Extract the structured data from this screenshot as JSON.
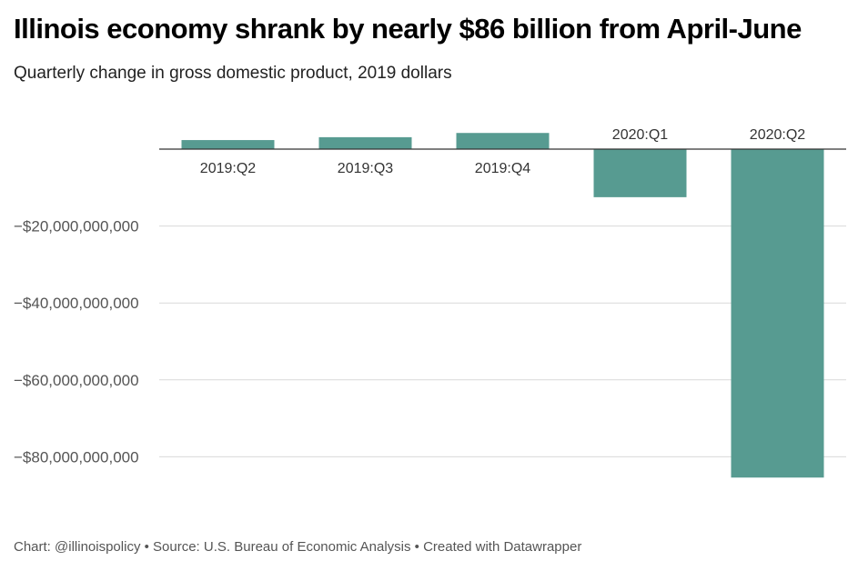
{
  "title": "Illinois economy shrank by nearly $86 billion from April-June",
  "subtitle": "Quarterly change in gross domestic product, 2019 dollars",
  "footer": "Chart: @illinoispolicy • Source: U.S. Bureau of Economic Analysis • Created with Datawrapper",
  "chart_data": {
    "type": "bar",
    "categories": [
      "2019:Q2",
      "2019:Q3",
      "2019:Q4",
      "2020:Q1",
      "2020:Q2"
    ],
    "values": [
      2350000000,
      3100000000,
      4200000000,
      -12500000000,
      -85400000000
    ],
    "ylim": [
      -90000000000,
      10000000000
    ],
    "yticks": [
      -20000000000,
      -40000000000,
      -60000000000,
      -80000000000
    ],
    "ytick_labels": [
      "−$20,000,000,000",
      "−$40,000,000,000",
      "−$60,000,000,000",
      "−$80,000,000,000"
    ],
    "grid": true,
    "bar_color": "#579b91"
  }
}
